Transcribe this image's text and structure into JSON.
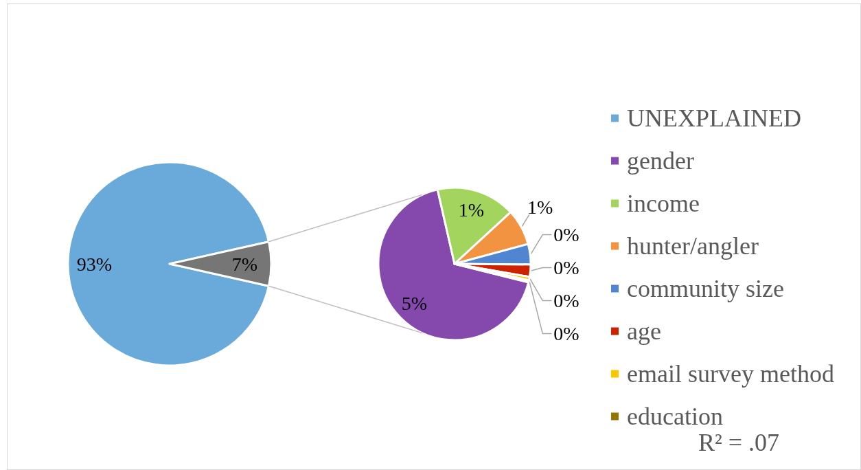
{
  "chart_data": [
    {
      "type": "pie",
      "categories": [
        "UNEXPLAINED",
        null
      ],
      "values": [
        93,
        7
      ],
      "colors": [
        "#6aaadb",
        "#767676"
      ],
      "value_labels": [
        "93%",
        "7%"
      ],
      "legend": "right"
    },
    {
      "type": "pie",
      "categories": [
        "gender",
        "income",
        "hunter/angler",
        "community size",
        "age",
        "email survey method",
        "education"
      ],
      "values": [
        4.68,
        1.16,
        0.53,
        0.3,
        0.18,
        0.05,
        0.03
      ],
      "colors": [
        "#8549ad",
        "#a2d45e",
        "#f19341",
        "#5086d1",
        "#cc2200",
        "#ffc400",
        "#977300"
      ],
      "value_labels": [
        "5%",
        "1%",
        "1%",
        "0%",
        "0%",
        "0%",
        "0%"
      ],
      "legend": "right",
      "annotations": [
        "R² = .07"
      ]
    }
  ]
}
